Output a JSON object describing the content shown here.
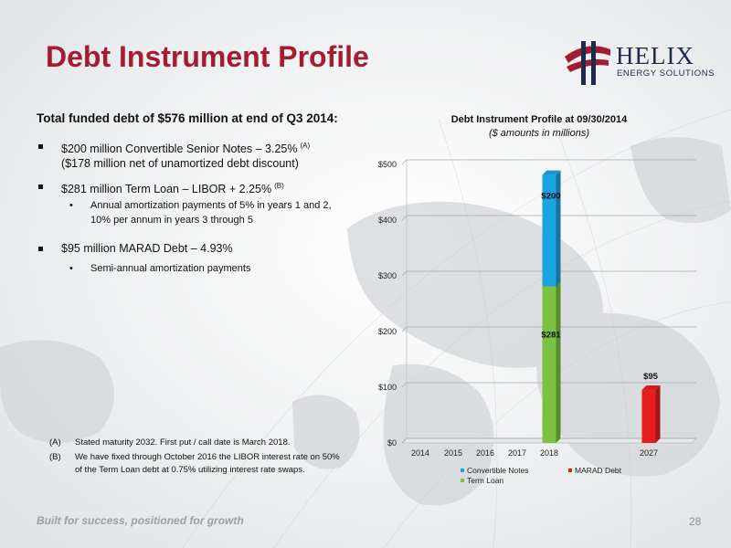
{
  "header": {
    "title": "Debt Instrument Profile",
    "logo_name": "HELIX",
    "logo_subtitle": "ENERGY SOLUTIONS"
  },
  "body": {
    "lead": "Total funded debt of $576 million at end of Q3 2014:",
    "bullets": [
      {
        "text": "$200 million Convertible Senior Notes – 3.25%",
        "note_ref": "(A)",
        "line2": "($178 million net of unamortized debt discount)",
        "subs": []
      },
      {
        "text": "$281 million Term Loan – LIBOR + 2.25%",
        "note_ref": "(B)",
        "line2": "",
        "subs": [
          "Annual amortization payments of 5% in years 1 and 2, 10% per annum in years 3 through 5"
        ]
      },
      {
        "text": "$95 million MARAD Debt – 4.93%",
        "note_ref": "",
        "line2": "",
        "subs": [
          "Semi-annual amortization payments"
        ]
      }
    ],
    "footnotes": [
      {
        "label": "(A)",
        "text": "Stated maturity 2032. First put / call date is March 2018."
      },
      {
        "label": "(B)",
        "text": "We have fixed through October 2016 the LIBOR interest rate on 50% of the Term Loan debt at 0.75% utilizing interest rate swaps."
      }
    ]
  },
  "footer": {
    "tagline": "Built for success, positioned for growth",
    "page": "28"
  },
  "chart_data": {
    "type": "bar",
    "stacked": true,
    "title": "Debt Instrument Profile at 09/30/2014",
    "subtitle": "($ amounts in millions)",
    "categories": [
      "2014",
      "2015",
      "2016",
      "2017",
      "2018",
      "2027"
    ],
    "series": [
      {
        "name": "Convertible Notes",
        "color": "#1aa3e0",
        "values": [
          0,
          0,
          0,
          0,
          200,
          0
        ]
      },
      {
        "name": "Term Loan",
        "color": "#7cc242",
        "values": [
          0,
          0,
          0,
          0,
          281,
          0
        ]
      },
      {
        "name": "MARAD Debt",
        "color": "#e41e1e",
        "values": [
          0,
          0,
          0,
          0,
          0,
          95
        ]
      }
    ],
    "data_labels": [
      "$200",
      "$281",
      "$95"
    ],
    "ylim": [
      0,
      500
    ],
    "yticks": [
      0,
      100,
      200,
      300,
      400,
      500
    ],
    "ytick_labels": [
      "$0",
      "$100",
      "$200",
      "$300",
      "$400",
      "$500"
    ],
    "grid": true,
    "legend_placement": "bottom"
  }
}
